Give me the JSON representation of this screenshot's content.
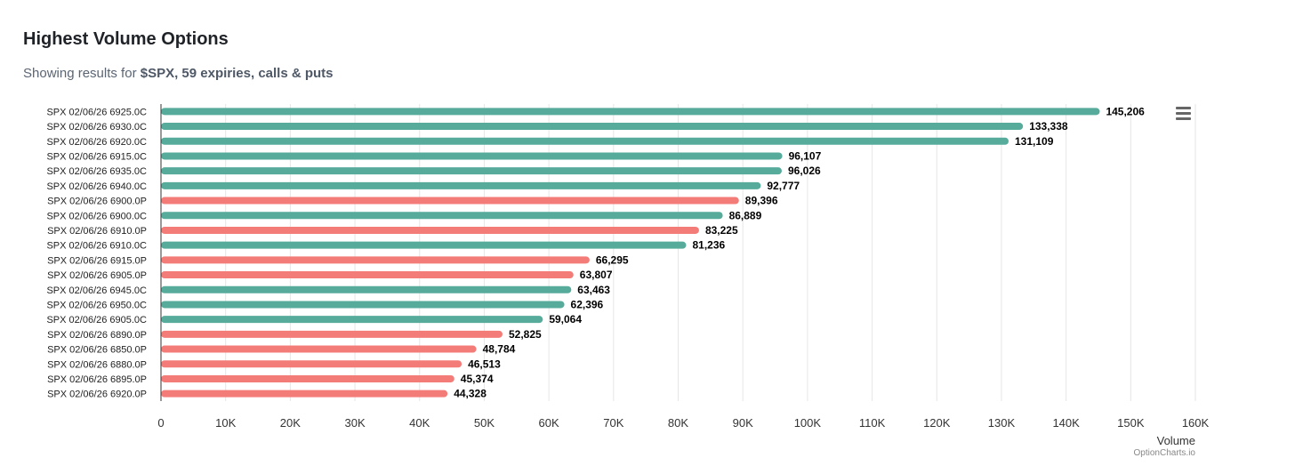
{
  "header": {
    "title": "Highest Volume Options",
    "subtitle_prefix": "Showing results for ",
    "subtitle_bold": "$SPX, 59 expiries, calls & puts"
  },
  "credits": "OptionCharts.io",
  "colors": {
    "call": "#56ab9b",
    "put": "#f47c78",
    "grid": "#e6e6e6",
    "axis": "#333333"
  },
  "chart_data": {
    "type": "bar",
    "orientation": "horizontal",
    "title": "Highest Volume Options",
    "xlabel": "Volume",
    "ylabel": "",
    "xlim": [
      0,
      160000
    ],
    "xticks": [
      0,
      10000,
      20000,
      30000,
      40000,
      50000,
      60000,
      70000,
      80000,
      90000,
      100000,
      110000,
      120000,
      130000,
      140000,
      150000,
      160000
    ],
    "xtick_labels": [
      "0",
      "10K",
      "20K",
      "30K",
      "40K",
      "50K",
      "60K",
      "70K",
      "80K",
      "90K",
      "100K",
      "110K",
      "120K",
      "130K",
      "140K",
      "150K",
      "160K"
    ],
    "grid": true,
    "categories": [
      "SPX 02/06/26 6925.0C",
      "SPX 02/06/26 6930.0C",
      "SPX 02/06/26 6920.0C",
      "SPX 02/06/26 6915.0C",
      "SPX 02/06/26 6935.0C",
      "SPX 02/06/26 6940.0C",
      "SPX 02/06/26 6900.0P",
      "SPX 02/06/26 6900.0C",
      "SPX 02/06/26 6910.0P",
      "SPX 02/06/26 6910.0C",
      "SPX 02/06/26 6915.0P",
      "SPX 02/06/26 6905.0P",
      "SPX 02/06/26 6945.0C",
      "SPX 02/06/26 6950.0C",
      "SPX 02/06/26 6905.0C",
      "SPX 02/06/26 6890.0P",
      "SPX 02/06/26 6850.0P",
      "SPX 02/06/26 6880.0P",
      "SPX 02/06/26 6895.0P",
      "SPX 02/06/26 6920.0P"
    ],
    "values": [
      145206,
      133338,
      131109,
      96107,
      96026,
      92777,
      89396,
      86889,
      83225,
      81236,
      66295,
      63807,
      63463,
      62396,
      59064,
      52825,
      48784,
      46513,
      45374,
      44328
    ],
    "value_labels": [
      "145,206",
      "133,338",
      "131,109",
      "96,107",
      "96,026",
      "92,777",
      "89,396",
      "86,889",
      "83,225",
      "81,236",
      "66,295",
      "63,807",
      "63,463",
      "62,396",
      "59,064",
      "52,825",
      "48,784",
      "46,513",
      "45,374",
      "44,328"
    ],
    "types": [
      "call",
      "call",
      "call",
      "call",
      "call",
      "call",
      "put",
      "call",
      "put",
      "call",
      "put",
      "put",
      "call",
      "call",
      "call",
      "put",
      "put",
      "put",
      "put",
      "put"
    ]
  }
}
